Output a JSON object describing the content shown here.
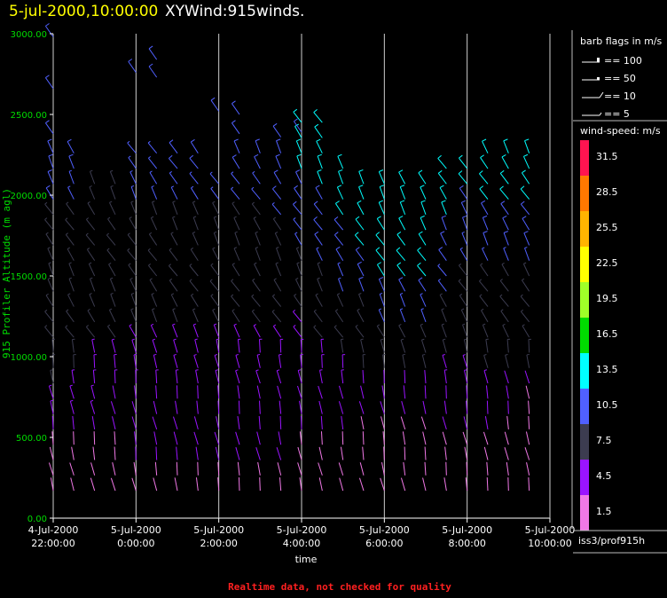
{
  "header": {
    "datetime": "5-jul-2000,10:00:00",
    "product": "XYWind:915winds."
  },
  "chart_data": {
    "type": "wind-barb-time-height",
    "ylabel": "915 Profiler Altitude (m agl)",
    "xlabel": "time",
    "ylim": [
      0,
      3000
    ],
    "yticks": [
      "3000.00",
      "2500.00",
      "2000.00",
      "1500.00",
      "1000.00",
      "500.00",
      "0.00"
    ],
    "xticks": [
      {
        "date": "4-Jul-2000",
        "time": "22:00:00"
      },
      {
        "date": "5-Jul-2000",
        "time": "0:00:00"
      },
      {
        "date": "5-Jul-2000",
        "time": "2:00:00"
      },
      {
        "date": "5-Jul-2000",
        "time": "4:00:00"
      },
      {
        "date": "5-Jul-2000",
        "time": "6:00:00"
      },
      {
        "date": "5-Jul-2000",
        "time": "8:00:00"
      },
      {
        "date": "5-Jul-2000",
        "time": "10:00:00"
      }
    ],
    "time_range_hours": [
      22,
      34
    ],
    "profile_interval_minutes": 30,
    "gridlines_vertical": true,
    "profiles": [
      {
        "t": 22.0,
        "top": 2280,
        "low": [
          1,
          1,
          3,
          5,
          6
        ],
        "mid": [
          6,
          6,
          7,
          7,
          7
        ],
        "up": [
          8,
          8,
          10,
          10
        ]
      },
      {
        "t": 22.5,
        "top": 2280,
        "low": [
          1,
          1,
          3,
          5,
          5
        ],
        "mid": [
          6,
          6,
          7,
          7,
          7
        ],
        "up": [
          8,
          8,
          9,
          10
        ]
      },
      {
        "t": 23.0,
        "top": 2150,
        "low": [
          1,
          2,
          3,
          5,
          5
        ],
        "mid": [
          5,
          6,
          7,
          7,
          7
        ],
        "up": [
          7,
          8,
          8
        ]
      },
      {
        "t": 23.5,
        "top": 2150,
        "low": [
          1,
          2,
          3,
          4,
          5
        ],
        "mid": [
          5,
          6,
          6,
          7,
          7
        ],
        "up": [
          7,
          8,
          8
        ]
      },
      {
        "t": 24.0,
        "top": 2280,
        "low": [
          2,
          3,
          3,
          4,
          5
        ],
        "mid": [
          5,
          5,
          6,
          7,
          7
        ],
        "up": [
          7,
          8,
          9,
          9
        ]
      },
      {
        "t": 24.5,
        "top": 2280,
        "low": [
          2,
          3,
          4,
          4,
          5
        ],
        "mid": [
          5,
          5,
          6,
          7,
          7
        ],
        "up": [
          7,
          8,
          9,
          9
        ]
      },
      {
        "t": 25.0,
        "top": 2280,
        "low": [
          2,
          3,
          4,
          4,
          5
        ],
        "mid": [
          5,
          5,
          6,
          6,
          7
        ],
        "up": [
          7,
          8,
          9,
          10
        ]
      },
      {
        "t": 25.5,
        "top": 2280,
        "low": [
          2,
          3,
          4,
          4,
          5
        ],
        "mid": [
          5,
          5,
          6,
          6,
          7
        ],
        "up": [
          7,
          8,
          9,
          10
        ]
      },
      {
        "t": 26.0,
        "top": 2150,
        "low": [
          2,
          3,
          4,
          4,
          5
        ],
        "mid": [
          5,
          5,
          6,
          6,
          7
        ],
        "up": [
          7,
          8,
          9
        ]
      },
      {
        "t": 26.5,
        "top": 2280,
        "low": [
          2,
          3,
          4,
          4,
          5
        ],
        "mid": [
          5,
          5,
          6,
          6,
          7
        ],
        "up": [
          7,
          8,
          9,
          10
        ]
      },
      {
        "t": 27.0,
        "top": 2280,
        "low": [
          2,
          3,
          4,
          4,
          5
        ],
        "mid": [
          5,
          5,
          6,
          6,
          7
        ],
        "up": [
          7,
          8,
          9,
          10
        ]
      },
      {
        "t": 27.5,
        "top": 2280,
        "low": [
          2,
          3,
          4,
          4,
          5
        ],
        "mid": [
          5,
          5,
          6,
          6,
          7
        ],
        "up": [
          8,
          9,
          10,
          10
        ]
      },
      {
        "t": 28.0,
        "top": 2450,
        "low": [
          2,
          2,
          3,
          4,
          5
        ],
        "mid": [
          5,
          5,
          6,
          7,
          8
        ],
        "up": [
          9,
          10,
          11,
          12,
          12
        ]
      },
      {
        "t": 28.5,
        "top": 2450,
        "low": [
          2,
          2,
          3,
          4,
          5
        ],
        "mid": [
          5,
          6,
          7,
          8,
          9
        ],
        "up": [
          10,
          11,
          12,
          12,
          12
        ]
      },
      {
        "t": 29.0,
        "top": 2200,
        "low": [
          1,
          2,
          3,
          4,
          5
        ],
        "mid": [
          6,
          7,
          8,
          9,
          10
        ],
        "up": [
          11,
          12,
          12
        ]
      },
      {
        "t": 29.5,
        "top": 2150,
        "low": [
          1,
          1,
          2,
          3,
          4
        ],
        "mid": [
          6,
          7,
          8,
          10,
          11
        ],
        "up": [
          12,
          12,
          13
        ]
      },
      {
        "t": 30.0,
        "top": 2120,
        "low": [
          1,
          1,
          2,
          3,
          4
        ],
        "mid": [
          6,
          7,
          9,
          11,
          12
        ],
        "up": [
          12,
          13,
          13
        ]
      },
      {
        "t": 30.5,
        "top": 2120,
        "low": [
          1,
          1,
          2,
          3,
          4
        ],
        "mid": [
          6,
          7,
          9,
          11,
          12
        ],
        "up": [
          12,
          13,
          13
        ]
      },
      {
        "t": 31.0,
        "top": 2120,
        "low": [
          1,
          1,
          2,
          3,
          4
        ],
        "mid": [
          6,
          7,
          9,
          11,
          12
        ],
        "up": [
          12,
          12,
          13
        ]
      },
      {
        "t": 31.5,
        "top": 2200,
        "low": [
          1,
          2,
          3,
          4,
          5
        ],
        "mid": [
          6,
          7,
          8,
          9,
          10
        ],
        "up": [
          11,
          12,
          12
        ]
      },
      {
        "t": 32.0,
        "top": 2200,
        "low": [
          1,
          2,
          3,
          4,
          5
        ],
        "mid": [
          6,
          7,
          8,
          8,
          9
        ],
        "up": [
          10,
          11,
          12
        ]
      },
      {
        "t": 32.5,
        "top": 2280,
        "low": [
          1,
          2,
          3,
          4,
          5
        ],
        "mid": [
          6,
          7,
          7,
          8,
          9
        ],
        "up": [
          10,
          11,
          12,
          12
        ]
      },
      {
        "t": 33.0,
        "top": 2280,
        "low": [
          1,
          1,
          2,
          3,
          4
        ],
        "mid": [
          6,
          7,
          7,
          8,
          9
        ],
        "up": [
          10,
          11,
          12,
          12
        ]
      },
      {
        "t": 33.5,
        "top": 2280,
        "low": [
          1,
          1,
          1,
          2,
          4
        ],
        "mid": [
          6,
          6,
          7,
          8,
          9
        ],
        "up": [
          10,
          11,
          12,
          12
        ]
      }
    ],
    "sparse_upper": [
      {
        "t": 22.0,
        "h": 2980,
        "s": 10
      },
      {
        "t": 22.0,
        "h": 2660,
        "s": 10
      },
      {
        "t": 22.0,
        "h": 2380,
        "s": 10
      },
      {
        "t": 24.0,
        "h": 2760,
        "s": 10
      },
      {
        "t": 24.5,
        "h": 2730,
        "s": 10
      },
      {
        "t": 24.5,
        "h": 2840,
        "s": 10
      },
      {
        "t": 26.0,
        "h": 2520,
        "s": 10
      },
      {
        "t": 26.5,
        "h": 2500,
        "s": 10
      },
      {
        "t": 26.5,
        "h": 2380,
        "s": 10
      },
      {
        "t": 27.5,
        "h": 2360,
        "s": 10
      },
      {
        "t": 28.0,
        "h": 2390,
        "s": 10
      }
    ],
    "legend": {
      "barb_title": "barb flags in m/s",
      "barbs": [
        {
          "label": "== 100",
          "value": 100
        },
        {
          "label": "== 50",
          "value": 50
        },
        {
          "label": "== 10",
          "value": 10
        },
        {
          "label": "== 5",
          "value": 5
        }
      ],
      "colorbar_title": "wind-speed: m/s",
      "colorbar": [
        {
          "label": "31.5",
          "color": "#ff1450"
        },
        {
          "label": "28.5",
          "color": "#ff7800"
        },
        {
          "label": "25.5",
          "color": "#ffb400"
        },
        {
          "label": "22.5",
          "color": "#ffff00"
        },
        {
          "label": "19.5",
          "color": "#a0ff28"
        },
        {
          "label": "16.5",
          "color": "#00dc00"
        },
        {
          "label": "13.5",
          "color": "#00ffff"
        },
        {
          "label": "10.5",
          "color": "#5060ff"
        },
        {
          "label": "7.5",
          "color": "#3c3c50"
        },
        {
          "label": "4.5",
          "color": "#9a14ff"
        },
        {
          "label": "1.5",
          "color": "#f078e6"
        }
      ]
    }
  },
  "footer": {
    "station": "iss3/prof915h",
    "quality_note": "Realtime data, not checked for quality"
  },
  "colors": {
    "title_date": "#ffff00",
    "title_product": "#ffffff",
    "axis_label": "#00dd00",
    "footer_note": "#ff2020",
    "grid": "#cccccc"
  }
}
